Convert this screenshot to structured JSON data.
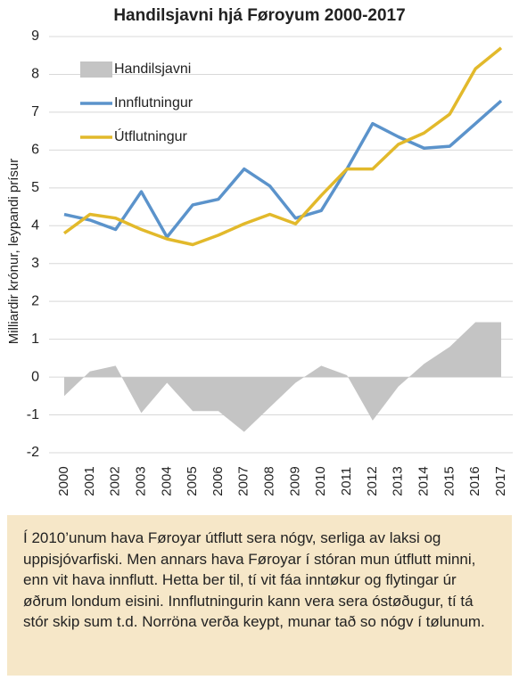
{
  "chart_data": {
    "type": "line",
    "title": "Handilsjavni hjá Føroyum 2000-2017",
    "y_label": "Milliardir krónur, leypandi prísur",
    "categories": [
      "2000",
      "2001",
      "2002",
      "2003",
      "2004",
      "2005",
      "2006",
      "2007",
      "2008",
      "2009",
      "2010",
      "2011",
      "2012",
      "2013",
      "2014",
      "2015",
      "2016",
      "2017"
    ],
    "series": [
      {
        "name": "Handilsjavni",
        "type": "area",
        "color": "#c4c4c4",
        "values": [
          -0.5,
          0.15,
          0.3,
          -0.95,
          -0.15,
          -0.9,
          -0.9,
          -1.45,
          -0.8,
          -0.15,
          0.3,
          0.05,
          -1.15,
          -0.25,
          0.35,
          0.8,
          1.45,
          1.45
        ]
      },
      {
        "name": "Innflutningur",
        "type": "line",
        "color": "#5b93cb",
        "values": [
          4.3,
          4.15,
          3.9,
          4.9,
          3.7,
          4.55,
          4.7,
          5.5,
          5.05,
          4.2,
          4.4,
          5.5,
          6.7,
          6.35,
          6.05,
          6.1,
          6.7,
          7.3
        ]
      },
      {
        "name": "Útflutningur",
        "type": "line",
        "color": "#e2b92b",
        "values": [
          3.8,
          4.3,
          4.2,
          3.9,
          3.65,
          3.5,
          3.75,
          4.05,
          4.3,
          4.05,
          4.8,
          5.5,
          5.5,
          6.15,
          6.45,
          6.95,
          8.15,
          8.7
        ]
      }
    ],
    "ylim": [
      -2,
      9
    ],
    "yticks": [
      -2,
      -1,
      0,
      1,
      2,
      3,
      4,
      5,
      6,
      7,
      8,
      9
    ],
    "grid": true,
    "legend": "top-left"
  },
  "caption": "Í 2010’unum hava Føroyar útflutt sera nógv, serliga av laksi og uppisjóvarfiski. Men annars hava Føroyar í stóran mun útflutt minni, enn vit hava innflutt. Hetta ber til, tí vit fáa inntøkur og flytingar úr øðrum londum eisini. Innflutningurin kann vera sera óstøðugur, tí tá stór skip sum t.d. Norröna verða keypt, munar tað so nógv í tølunum."
}
